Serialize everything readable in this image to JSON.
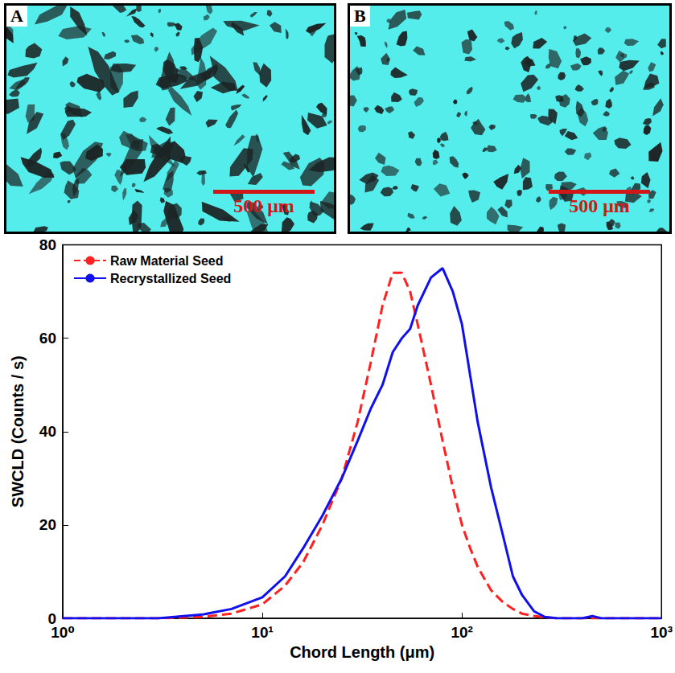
{
  "panels": [
    {
      "label": "A",
      "scale_bar": "500 μm"
    },
    {
      "label": "B",
      "scale_bar": "500 μm"
    }
  ],
  "chart_data": {
    "type": "line",
    "x_label": "Chord Length (μm)",
    "y_label": "SWCLD (Counts / s)",
    "log": "x",
    "grid": false,
    "legend": "upper left",
    "xlim": [
      1,
      1000
    ],
    "xticks": [
      {
        "value": 1,
        "label": "10⁰"
      },
      {
        "value": 10,
        "label": "10¹"
      },
      {
        "value": 100,
        "label": "10²"
      },
      {
        "value": 1000,
        "label": "10³"
      }
    ],
    "ylim": [
      0,
      80
    ],
    "yticks": [
      0,
      20,
      40,
      60,
      80
    ],
    "x": [
      1,
      3,
      5,
      7,
      10,
      13,
      16,
      20,
      25,
      30,
      35,
      40,
      45,
      50,
      55,
      60,
      70,
      80,
      90,
      100,
      110,
      120,
      140,
      160,
      180,
      200,
      230,
      260,
      300,
      400,
      450,
      500,
      1000
    ],
    "series": [
      {
        "name": "Raw Material Seed",
        "color": "#ff2020",
        "line_style": "dashed",
        "values": [
          0,
          0,
          0.3,
          1,
          3,
          7,
          12,
          20,
          30,
          42,
          55,
          67,
          74,
          74,
          70,
          63,
          50,
          38,
          28,
          20,
          15,
          11,
          6,
          3.5,
          2,
          1,
          0.5,
          0.2,
          0,
          0,
          0,
          0,
          0
        ]
      },
      {
        "name": "Recrystallized Seed",
        "color": "#1010ee",
        "line_style": "solid",
        "values": [
          0,
          0,
          0.8,
          2,
          4.5,
          9,
          15,
          22,
          30,
          38,
          45,
          50,
          57,
          60,
          62,
          67,
          73,
          75,
          70,
          63,
          52,
          42,
          28,
          18,
          9,
          5,
          1.5,
          0.3,
          0,
          0,
          0.5,
          0,
          0
        ]
      }
    ]
  }
}
